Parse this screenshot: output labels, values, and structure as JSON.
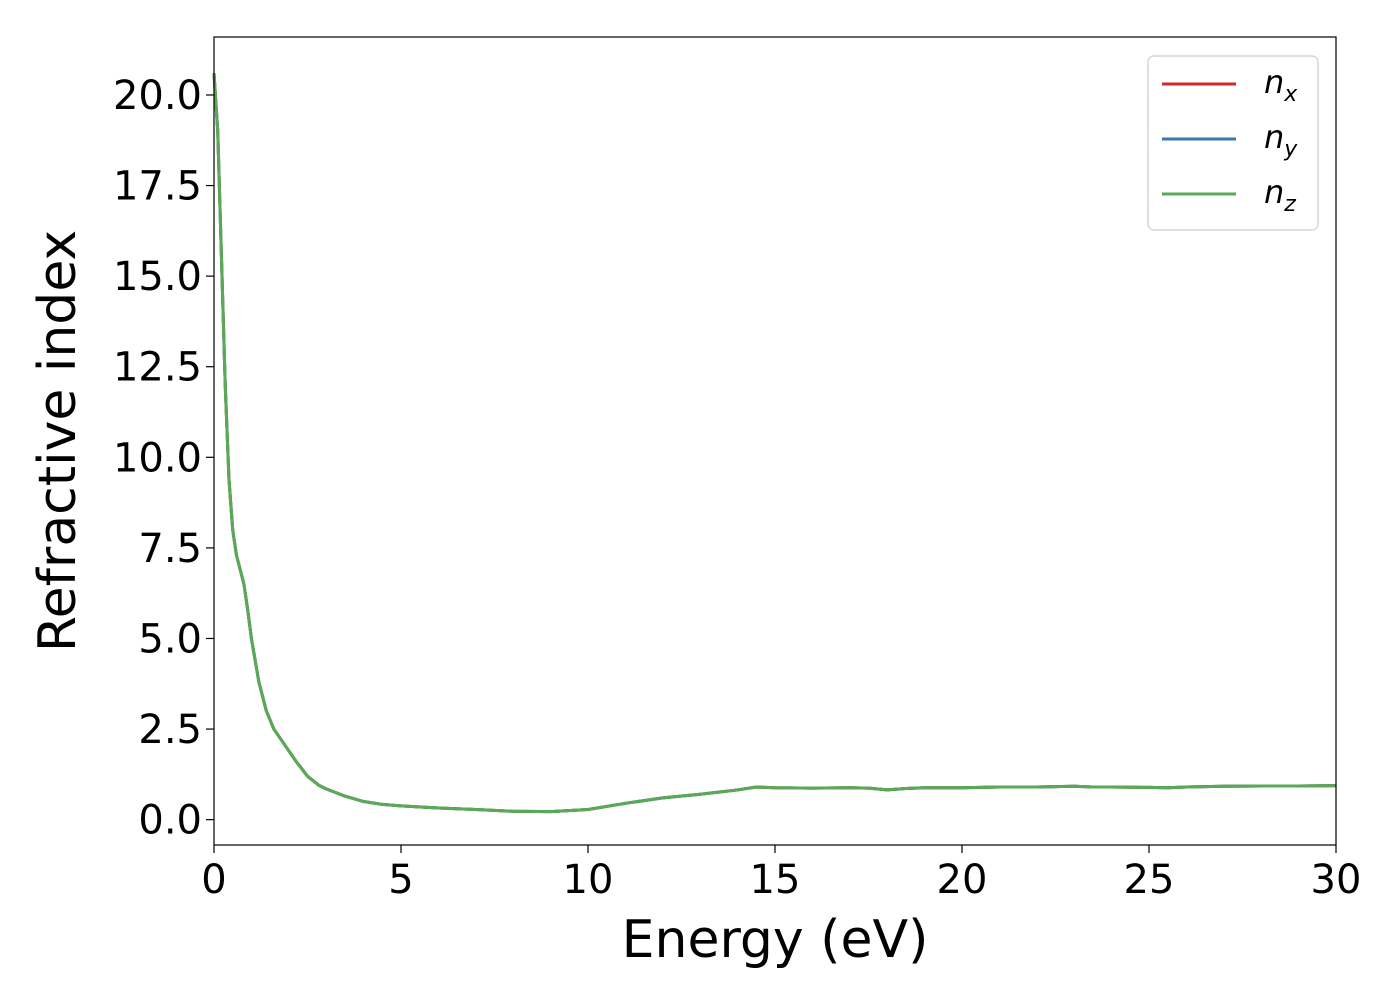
{
  "chart_data": {
    "type": "line",
    "title": "",
    "xlabel": "Energy (eV)",
    "ylabel": "Refractive index",
    "xlim": [
      0,
      30
    ],
    "ylim": [
      -0.7,
      21.6
    ],
    "x_ticks": [
      {
        "value": 0,
        "label": "0"
      },
      {
        "value": 5,
        "label": "5"
      },
      {
        "value": 10,
        "label": "10"
      },
      {
        "value": 15,
        "label": "15"
      },
      {
        "value": 20,
        "label": "20"
      },
      {
        "value": 25,
        "label": "25"
      },
      {
        "value": 30,
        "label": "30"
      }
    ],
    "y_ticks": [
      {
        "value": 0.0,
        "label": "0.0"
      },
      {
        "value": 2.5,
        "label": "2.5"
      },
      {
        "value": 5.0,
        "label": "5.0"
      },
      {
        "value": 7.5,
        "label": "7.5"
      },
      {
        "value": 10.0,
        "label": "10.0"
      },
      {
        "value": 12.5,
        "label": "12.5"
      },
      {
        "value": 15.0,
        "label": "15.0"
      },
      {
        "value": 17.5,
        "label": "17.5"
      },
      {
        "value": 20.0,
        "label": "20.0"
      }
    ],
    "grid": false,
    "legend_position": "top-right",
    "x": [
      0,
      0.1,
      0.2,
      0.3,
      0.4,
      0.5,
      0.6,
      0.7,
      0.8,
      0.9,
      1.0,
      1.2,
      1.4,
      1.6,
      1.8,
      2.0,
      2.2,
      2.5,
      2.8,
      3.0,
      3.5,
      4.0,
      4.5,
      5.0,
      6.0,
      7.0,
      8.0,
      9.0,
      10.0,
      11.0,
      12.0,
      13.0,
      14.0,
      14.5,
      15.0,
      16.0,
      17.0,
      17.5,
      18.0,
      18.5,
      19.0,
      20.0,
      21.0,
      22.0,
      23.0,
      23.5,
      24.0,
      25.0,
      25.5,
      26.0,
      27.0,
      28.0,
      29.0,
      30.0
    ],
    "series": [
      {
        "name": "n_x",
        "label_base": "n",
        "label_sub": "x",
        "color": "#d62728",
        "values": [
          20.6,
          19.0,
          15.5,
          12.0,
          9.4,
          8.0,
          7.3,
          6.9,
          6.5,
          5.8,
          5.0,
          3.8,
          3.0,
          2.5,
          2.2,
          1.9,
          1.6,
          1.2,
          0.95,
          0.85,
          0.65,
          0.5,
          0.42,
          0.38,
          0.32,
          0.28,
          0.23,
          0.22,
          0.28,
          0.45,
          0.6,
          0.7,
          0.82,
          0.9,
          0.88,
          0.87,
          0.88,
          0.87,
          0.82,
          0.86,
          0.88,
          0.88,
          0.9,
          0.9,
          0.92,
          0.9,
          0.9,
          0.89,
          0.88,
          0.9,
          0.92,
          0.93,
          0.93,
          0.94
        ]
      },
      {
        "name": "n_y",
        "label_base": "n",
        "label_sub": "y",
        "color": "#3a78b0",
        "values": [
          20.6,
          19.0,
          15.5,
          12.0,
          9.4,
          8.0,
          7.3,
          6.9,
          6.5,
          5.8,
          5.0,
          3.8,
          3.0,
          2.5,
          2.2,
          1.9,
          1.6,
          1.2,
          0.95,
          0.85,
          0.65,
          0.5,
          0.42,
          0.38,
          0.32,
          0.28,
          0.23,
          0.22,
          0.28,
          0.45,
          0.6,
          0.7,
          0.82,
          0.9,
          0.88,
          0.87,
          0.88,
          0.87,
          0.82,
          0.86,
          0.88,
          0.88,
          0.9,
          0.9,
          0.92,
          0.9,
          0.9,
          0.89,
          0.88,
          0.9,
          0.92,
          0.93,
          0.93,
          0.94
        ]
      },
      {
        "name": "n_z",
        "label_base": "n",
        "label_sub": "z",
        "color": "#5aaa55",
        "values": [
          20.6,
          19.0,
          15.5,
          12.0,
          9.4,
          8.0,
          7.3,
          6.9,
          6.5,
          5.8,
          5.0,
          3.8,
          3.0,
          2.5,
          2.2,
          1.9,
          1.6,
          1.2,
          0.95,
          0.85,
          0.65,
          0.5,
          0.42,
          0.38,
          0.32,
          0.28,
          0.23,
          0.22,
          0.28,
          0.45,
          0.6,
          0.7,
          0.82,
          0.9,
          0.88,
          0.87,
          0.88,
          0.87,
          0.82,
          0.86,
          0.88,
          0.88,
          0.9,
          0.9,
          0.92,
          0.9,
          0.9,
          0.89,
          0.88,
          0.9,
          0.92,
          0.93,
          0.93,
          0.94
        ]
      }
    ]
  }
}
